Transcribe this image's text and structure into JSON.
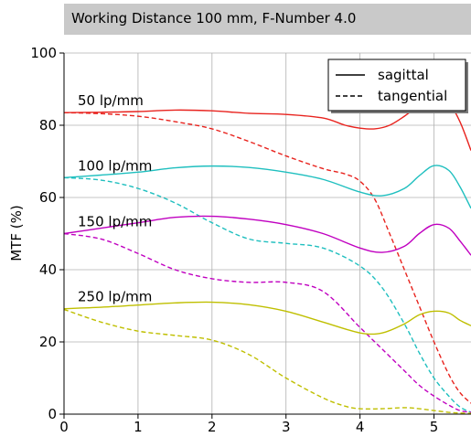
{
  "chart_data": {
    "type": "line",
    "title": "Working Distance 100 mm, F-Number 4.0",
    "xlabel": "",
    "ylabel": "MTF (%)",
    "xlim": [
      0,
      5.5
    ],
    "ylim": [
      0,
      100
    ],
    "xticks": [
      0,
      1,
      2,
      3,
      4,
      5
    ],
    "yticks": [
      0,
      20,
      40,
      60,
      80,
      100
    ],
    "grid": true,
    "legend_position": "top-right",
    "legend": [
      {
        "label": "sagittal",
        "style": "solid"
      },
      {
        "label": "tangential",
        "style": "dashed"
      }
    ],
    "groups": [
      {
        "label": "50 lp/mm",
        "color": "#e8231e",
        "sagittal": {
          "x": [
            0,
            0.5,
            1,
            1.5,
            2,
            2.5,
            3,
            3.5,
            3.8,
            4,
            4.2,
            4.4,
            4.6,
            4.8,
            5.0,
            5.2,
            5.35,
            5.5
          ],
          "y": [
            83.5,
            83.6,
            83.8,
            84.2,
            84.0,
            83.3,
            83.0,
            82.0,
            80.0,
            79.2,
            79.0,
            80.0,
            82.5,
            85.5,
            87.2,
            86.0,
            81.0,
            73.0
          ]
        },
        "tangential": {
          "x": [
            0,
            0.5,
            1,
            1.5,
            2,
            2.5,
            3,
            3.5,
            3.8,
            4,
            4.2,
            4.4,
            4.6,
            4.8,
            5.0,
            5.2,
            5.35,
            5.5
          ],
          "y": [
            83.5,
            83.2,
            82.5,
            81.0,
            79.0,
            75.5,
            71.5,
            68.0,
            66.5,
            64.5,
            59.5,
            50.0,
            40.0,
            30.0,
            20.0,
            11.0,
            6.0,
            3.0
          ]
        }
      },
      {
        "label": "100 lp/mm",
        "color": "#1fbfbf",
        "sagittal": {
          "x": [
            0,
            0.5,
            1,
            1.5,
            2,
            2.5,
            3,
            3.5,
            4,
            4.3,
            4.6,
            4.8,
            5.0,
            5.2,
            5.35,
            5.5
          ],
          "y": [
            65.5,
            66.2,
            67.0,
            68.2,
            68.7,
            68.3,
            67.0,
            65.0,
            61.5,
            60.5,
            62.5,
            66.0,
            68.8,
            67.5,
            63.0,
            57.0
          ]
        },
        "tangential": {
          "x": [
            0,
            0.5,
            1,
            1.5,
            2,
            2.5,
            3,
            3.5,
            4,
            4.3,
            4.6,
            4.8,
            5.0,
            5.2,
            5.35,
            5.5
          ],
          "y": [
            65.5,
            64.8,
            62.5,
            58.5,
            53.0,
            48.5,
            47.3,
            46.0,
            41.0,
            35.0,
            25.0,
            17.0,
            10.0,
            5.0,
            2.0,
            0.5
          ]
        }
      },
      {
        "label": "150 lp/mm",
        "color": "#c000c0",
        "sagittal": {
          "x": [
            0,
            0.5,
            1,
            1.5,
            2,
            2.5,
            3,
            3.5,
            4,
            4.3,
            4.6,
            4.8,
            5.0,
            5.2,
            5.35,
            5.5
          ],
          "y": [
            50.0,
            51.5,
            53.0,
            54.5,
            54.8,
            54.0,
            52.5,
            50.0,
            46.0,
            44.8,
            46.5,
            50.0,
            52.5,
            51.5,
            48.0,
            44.0
          ]
        },
        "tangential": {
          "x": [
            0,
            0.5,
            1,
            1.5,
            2,
            2.5,
            3,
            3.5,
            4,
            4.3,
            4.6,
            4.8,
            5.0,
            5.2,
            5.35,
            5.5
          ],
          "y": [
            50.0,
            48.5,
            44.5,
            40.0,
            37.5,
            36.5,
            36.5,
            34.0,
            24.0,
            18.0,
            12.0,
            8.0,
            5.0,
            2.5,
            1.0,
            0.5
          ]
        }
      },
      {
        "label": "250 lp/mm",
        "color": "#bfbf00",
        "sagittal": {
          "x": [
            0,
            0.5,
            1,
            1.5,
            2,
            2.5,
            3,
            3.5,
            4,
            4.3,
            4.6,
            4.8,
            5.0,
            5.2,
            5.35,
            5.5
          ],
          "y": [
            29.2,
            29.6,
            30.2,
            30.8,
            31.0,
            30.3,
            28.5,
            25.5,
            22.5,
            22.5,
            25.0,
            27.5,
            28.5,
            28.0,
            26.0,
            24.5
          ]
        },
        "tangential": {
          "x": [
            0,
            0.5,
            1,
            1.5,
            2,
            2.5,
            3,
            3.5,
            3.8,
            4,
            4.3,
            4.6,
            4.8,
            5.0,
            5.2,
            5.35,
            5.5
          ],
          "y": [
            29.0,
            25.5,
            23.0,
            21.8,
            20.5,
            16.5,
            10.0,
            4.5,
            2.2,
            1.5,
            1.5,
            1.8,
            1.5,
            1.0,
            0.5,
            0.3,
            0.2
          ]
        }
      }
    ]
  }
}
